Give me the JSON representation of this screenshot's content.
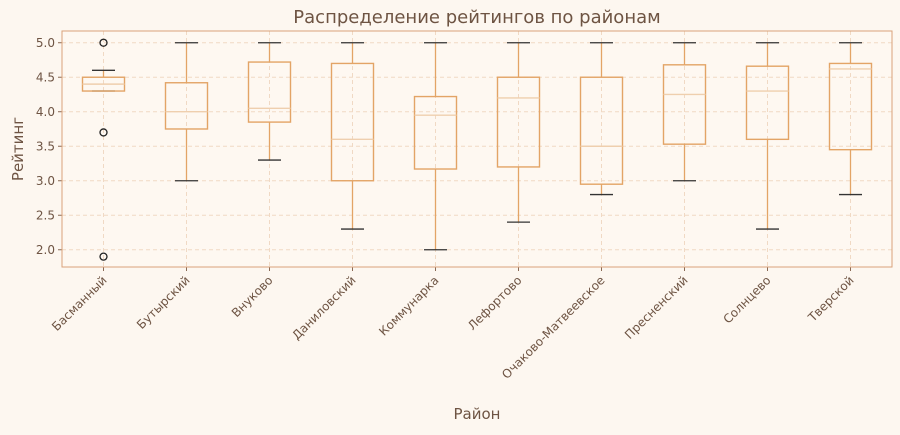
{
  "chart_data": {
    "type": "boxplot",
    "title": "Распределение рейтингов по районам",
    "xlabel": "Район",
    "ylabel": "Рейтинг",
    "ylim": [
      1.75,
      5.17
    ],
    "yticks": [
      "2.0",
      "2.5",
      "3.0",
      "3.5",
      "4.0",
      "4.5",
      "5.0"
    ],
    "grid": true,
    "colors": {
      "box": "#e3a466",
      "whisker_cap": "#333333",
      "background": "#fdf7f0",
      "axes": "#d9a27a",
      "grid": "#f0d9c4"
    },
    "categories": [
      "Басманный",
      "Бутырский",
      "Внуково",
      "Даниловский",
      "Коммунарка",
      "Лефортово",
      "Очаково-Матвеевское",
      "Пресненский",
      "Солнцево",
      "Тверской"
    ],
    "boxes": [
      {
        "low": 4.3,
        "q1": 4.3,
        "median": 4.4,
        "q3": 4.5,
        "high": 4.6,
        "outliers": [
          5.0,
          3.7,
          1.9
        ]
      },
      {
        "low": 3.0,
        "q1": 3.75,
        "median": 4.0,
        "q3": 4.42,
        "high": 5.0,
        "outliers": []
      },
      {
        "low": 3.3,
        "q1": 3.85,
        "median": 4.05,
        "q3": 4.72,
        "high": 5.0,
        "outliers": []
      },
      {
        "low": 2.3,
        "q1": 3.0,
        "median": 3.6,
        "q3": 4.7,
        "high": 5.0,
        "outliers": []
      },
      {
        "low": 2.0,
        "q1": 3.17,
        "median": 3.95,
        "q3": 4.22,
        "high": 5.0,
        "outliers": []
      },
      {
        "low": 2.4,
        "q1": 3.2,
        "median": 4.2,
        "q3": 4.5,
        "high": 5.0,
        "outliers": []
      },
      {
        "low": 2.8,
        "q1": 2.95,
        "median": 3.5,
        "q3": 4.5,
        "high": 5.0,
        "outliers": []
      },
      {
        "low": 3.0,
        "q1": 3.53,
        "median": 4.25,
        "q3": 4.68,
        "high": 5.0,
        "outliers": []
      },
      {
        "low": 2.3,
        "q1": 3.6,
        "median": 4.3,
        "q3": 4.66,
        "high": 5.0,
        "outliers": []
      },
      {
        "low": 2.8,
        "q1": 3.45,
        "median": 4.62,
        "q3": 4.7,
        "high": 5.0,
        "outliers": []
      }
    ]
  }
}
